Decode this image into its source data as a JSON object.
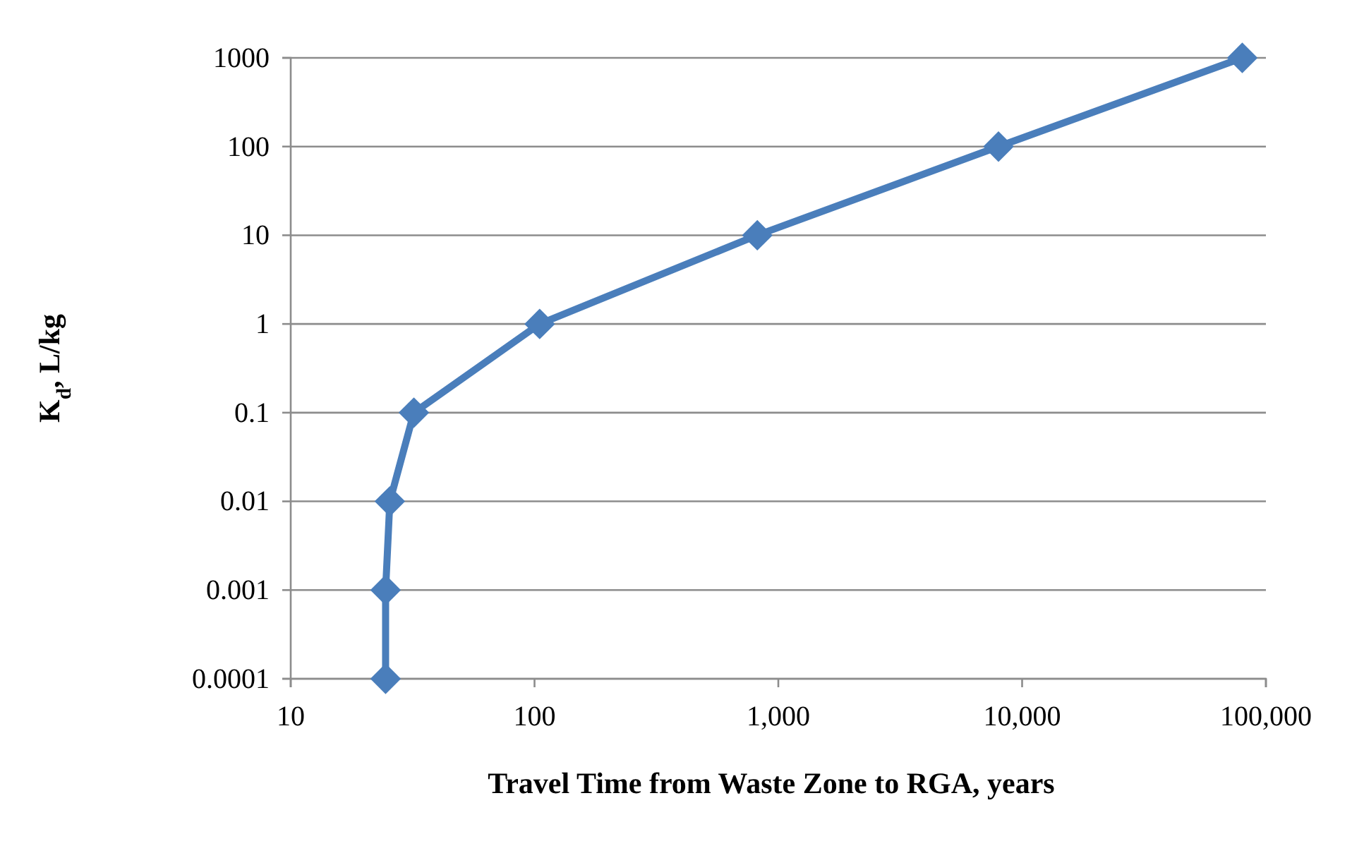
{
  "chart_data": {
    "type": "line",
    "xlabel": "Travel Time from Waste Zone to RGA, years",
    "ylabel": "K$_{d}$, L/kg",
    "x": [
      24.5,
      24.5,
      25.5,
      32,
      105,
      820,
      8000,
      80000
    ],
    "series": [
      {
        "color": "#4a7ebb",
        "values": [
          0.0001,
          0.001,
          0.01,
          0.1,
          1,
          10,
          100,
          1000
        ]
      }
    ],
    "log": "xy",
    "xlim": [
      10,
      100000
    ],
    "ylim": [
      0.0001,
      1000
    ],
    "xticks": [
      10,
      100,
      {
        "value": 1000,
        "label": "1,000"
      },
      {
        "value": 10000,
        "label": "10,000"
      },
      {
        "value": 100000,
        "label": "100,000"
      }
    ],
    "yticks": [
      0.0001,
      0.001,
      0.01,
      0.1,
      1,
      10,
      100,
      1000
    ],
    "grid": "y",
    "marker": "diamond",
    "line_style": "solid"
  }
}
